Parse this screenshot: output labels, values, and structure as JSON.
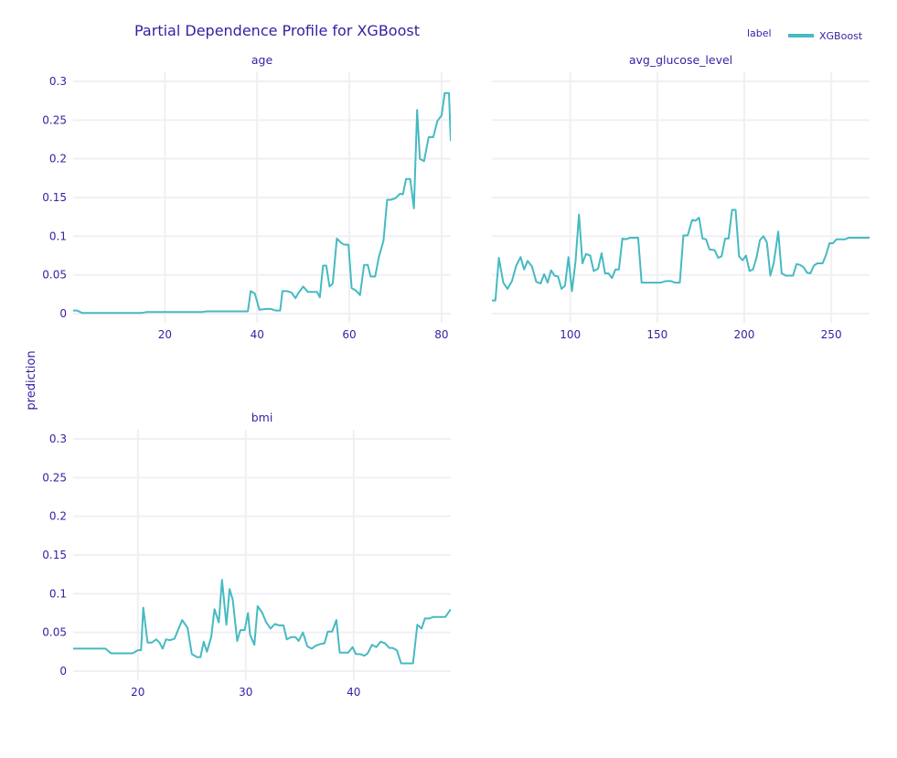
{
  "chart_data": {
    "type": "line",
    "title": "Partial Dependence Profile for XGBoost",
    "ylabel": "prediction",
    "legend": {
      "title": "label",
      "position": "top-right",
      "entries": [
        {
          "name": "XGBoost",
          "color": "#46bac2"
        }
      ]
    },
    "grid": true,
    "shared_y": {
      "ylim": [
        -0.012,
        0.312
      ],
      "ticks": [
        0,
        0.05,
        0.1,
        0.15,
        0.2,
        0.25,
        0.3
      ],
      "tick_labels": [
        "0",
        "0.05",
        "0.1",
        "0.15",
        "0.2",
        "0.25",
        "0.3"
      ]
    },
    "panels": [
      {
        "variable": "age",
        "xlim": [
          0.1,
          82
        ],
        "xticks": [
          20,
          40,
          60,
          80
        ],
        "series": [
          {
            "name": "XGBoost",
            "color": "#46bac2",
            "points": [
              [
                0.1,
                0.004
              ],
              [
                1,
                0.004
              ],
              [
                2,
                0.001
              ],
              [
                15,
                0.001
              ],
              [
                16,
                0.002
              ],
              [
                28,
                0.002
              ],
              [
                29,
                0.003
              ],
              [
                38,
                0.003
              ],
              [
                38.6,
                0.029
              ],
              [
                39.5,
                0.026
              ],
              [
                40.5,
                0.005
              ],
              [
                42,
                0.006
              ],
              [
                43,
                0.006
              ],
              [
                44,
                0.004
              ],
              [
                45,
                0.004
              ],
              [
                45.5,
                0.029
              ],
              [
                46.5,
                0.029
              ],
              [
                47.5,
                0.027
              ],
              [
                48.3,
                0.02
              ],
              [
                49,
                0.027
              ],
              [
                50,
                0.035
              ],
              [
                51,
                0.028
              ],
              [
                52,
                0.028
              ],
              [
                53,
                0.028
              ],
              [
                53.6,
                0.021
              ],
              [
                54.3,
                0.062
              ],
              [
                55,
                0.062
              ],
              [
                55.7,
                0.035
              ],
              [
                56.4,
                0.039
              ],
              [
                57.3,
                0.097
              ],
              [
                58.3,
                0.091
              ],
              [
                59,
                0.089
              ],
              [
                59.8,
                0.089
              ],
              [
                60.5,
                0.033
              ],
              [
                61.4,
                0.03
              ],
              [
                62.3,
                0.024
              ],
              [
                63.2,
                0.063
              ],
              [
                64,
                0.063
              ],
              [
                64.6,
                0.048
              ],
              [
                65.6,
                0.048
              ],
              [
                66.4,
                0.073
              ],
              [
                67.4,
                0.094
              ],
              [
                68.2,
                0.147
              ],
              [
                69,
                0.147
              ],
              [
                70,
                0.149
              ],
              [
                71,
                0.155
              ],
              [
                71.6,
                0.154
              ],
              [
                72.3,
                0.174
              ],
              [
                73.2,
                0.174
              ],
              [
                74,
                0.136
              ],
              [
                74.7,
                0.263
              ],
              [
                75.3,
                0.2
              ],
              [
                76.2,
                0.197
              ],
              [
                77.2,
                0.228
              ],
              [
                78.2,
                0.228
              ],
              [
                79.1,
                0.249
              ],
              [
                80,
                0.256
              ],
              [
                80.7,
                0.285
              ],
              [
                81.6,
                0.285
              ],
              [
                82,
                0.223
              ]
            ]
          }
        ]
      },
      {
        "variable": "avg_glucose_level",
        "xlim": [
          55,
          272
        ],
        "xticks": [
          100,
          150,
          200,
          250
        ],
        "series": [
          {
            "name": "XGBoost",
            "color": "#46bac2",
            "points": [
              [
                55,
                0.017
              ],
              [
                57,
                0.017
              ],
              [
                59,
                0.072
              ],
              [
                61.5,
                0.04
              ],
              [
                64,
                0.032
              ],
              [
                66.5,
                0.042
              ],
              [
                69,
                0.062
              ],
              [
                71.5,
                0.073
              ],
              [
                73.5,
                0.057
              ],
              [
                75.5,
                0.068
              ],
              [
                78,
                0.061
              ],
              [
                80.5,
                0.041
              ],
              [
                83,
                0.039
              ],
              [
                85,
                0.051
              ],
              [
                87,
                0.04
              ],
              [
                89,
                0.056
              ],
              [
                91,
                0.049
              ],
              [
                93,
                0.048
              ],
              [
                95,
                0.032
              ],
              [
                97,
                0.036
              ],
              [
                99,
                0.073
              ],
              [
                101,
                0.029
              ],
              [
                103,
                0.067
              ],
              [
                105,
                0.128
              ],
              [
                107,
                0.065
              ],
              [
                109,
                0.077
              ],
              [
                111.5,
                0.075
              ],
              [
                113.5,
                0.055
              ],
              [
                116,
                0.058
              ],
              [
                118,
                0.078
              ],
              [
                120,
                0.052
              ],
              [
                122,
                0.052
              ],
              [
                124,
                0.046
              ],
              [
                126,
                0.057
              ],
              [
                128,
                0.057
              ],
              [
                130,
                0.097
              ],
              [
                132,
                0.096
              ],
              [
                134.5,
                0.098
              ],
              [
                137,
                0.098
              ],
              [
                139,
                0.098
              ],
              [
                141,
                0.04
              ],
              [
                143,
                0.04
              ],
              [
                148,
                0.04
              ],
              [
                152,
                0.04
              ],
              [
                155,
                0.042
              ],
              [
                158,
                0.042
              ],
              [
                160,
                0.04
              ],
              [
                163,
                0.04
              ],
              [
                165,
                0.101
              ],
              [
                167.5,
                0.101
              ],
              [
                170,
                0.121
              ],
              [
                172,
                0.12
              ],
              [
                174,
                0.124
              ],
              [
                176,
                0.097
              ],
              [
                178,
                0.096
              ],
              [
                180,
                0.083
              ],
              [
                183,
                0.082
              ],
              [
                185,
                0.072
              ],
              [
                187,
                0.074
              ],
              [
                189,
                0.097
              ],
              [
                191,
                0.097
              ],
              [
                193,
                0.134
              ],
              [
                195,
                0.134
              ],
              [
                197,
                0.074
              ],
              [
                199,
                0.069
              ],
              [
                201,
                0.075
              ],
              [
                203,
                0.055
              ],
              [
                205,
                0.057
              ],
              [
                207,
                0.072
              ],
              [
                209,
                0.095
              ],
              [
                211,
                0.1
              ],
              [
                213,
                0.092
              ],
              [
                215,
                0.049
              ],
              [
                217,
                0.066
              ],
              [
                219.5,
                0.106
              ],
              [
                221.5,
                0.052
              ],
              [
                224,
                0.049
              ],
              [
                226,
                0.049
              ],
              [
                228,
                0.049
              ],
              [
                230,
                0.064
              ],
              [
                232,
                0.063
              ],
              [
                234,
                0.06
              ],
              [
                236,
                0.053
              ],
              [
                238,
                0.052
              ],
              [
                240,
                0.062
              ],
              [
                242,
                0.065
              ],
              [
                245,
                0.065
              ],
              [
                247,
                0.076
              ],
              [
                249,
                0.091
              ],
              [
                251,
                0.091
              ],
              [
                253,
                0.096
              ],
              [
                256,
                0.096
              ],
              [
                258,
                0.096
              ],
              [
                260,
                0.098
              ],
              [
                264,
                0.098
              ],
              [
                268,
                0.098
              ],
              [
                272,
                0.098
              ]
            ]
          }
        ]
      },
      {
        "variable": "bmi",
        "xlim": [
          14,
          49
        ],
        "xticks": [
          20,
          30,
          40
        ],
        "series": [
          {
            "name": "XGBoost",
            "color": "#46bac2",
            "points": [
              [
                14,
                0.029
              ],
              [
                17,
                0.029
              ],
              [
                17.5,
                0.023
              ],
              [
                19.5,
                0.023
              ],
              [
                20,
                0.027
              ],
              [
                20.3,
                0.027
              ],
              [
                20.5,
                0.082
              ],
              [
                20.9,
                0.037
              ],
              [
                21.3,
                0.037
              ],
              [
                21.7,
                0.041
              ],
              [
                22,
                0.037
              ],
              [
                22.3,
                0.029
              ],
              [
                22.6,
                0.041
              ],
              [
                23,
                0.04
              ],
              [
                23.4,
                0.042
              ],
              [
                24.1,
                0.066
              ],
              [
                24.6,
                0.056
              ],
              [
                25,
                0.022
              ],
              [
                25.5,
                0.018
              ],
              [
                25.8,
                0.018
              ],
              [
                26.1,
                0.038
              ],
              [
                26.4,
                0.025
              ],
              [
                26.8,
                0.044
              ],
              [
                27.1,
                0.08
              ],
              [
                27.5,
                0.063
              ],
              [
                27.8,
                0.118
              ],
              [
                28.2,
                0.06
              ],
              [
                28.5,
                0.106
              ],
              [
                28.8,
                0.092
              ],
              [
                29.2,
                0.039
              ],
              [
                29.5,
                0.053
              ],
              [
                29.9,
                0.053
              ],
              [
                30.2,
                0.075
              ],
              [
                30.4,
                0.047
              ],
              [
                30.8,
                0.034
              ],
              [
                31.1,
                0.084
              ],
              [
                31.5,
                0.076
              ],
              [
                31.9,
                0.063
              ],
              [
                32.3,
                0.055
              ],
              [
                32.7,
                0.061
              ],
              [
                33.1,
                0.059
              ],
              [
                33.5,
                0.059
              ],
              [
                33.8,
                0.041
              ],
              [
                34.2,
                0.044
              ],
              [
                34.6,
                0.044
              ],
              [
                34.9,
                0.039
              ],
              [
                35.3,
                0.05
              ],
              [
                35.7,
                0.032
              ],
              [
                36.1,
                0.029
              ],
              [
                36.5,
                0.033
              ],
              [
                36.9,
                0.035
              ],
              [
                37.3,
                0.036
              ],
              [
                37.6,
                0.051
              ],
              [
                38,
                0.051
              ],
              [
                38.4,
                0.066
              ],
              [
                38.7,
                0.024
              ],
              [
                39.1,
                0.024
              ],
              [
                39.5,
                0.024
              ],
              [
                39.9,
                0.031
              ],
              [
                40.2,
                0.022
              ],
              [
                40.6,
                0.022
              ],
              [
                41,
                0.02
              ],
              [
                41.3,
                0.023
              ],
              [
                41.7,
                0.034
              ],
              [
                42.1,
                0.031
              ],
              [
                42.5,
                0.038
              ],
              [
                42.9,
                0.036
              ],
              [
                43.3,
                0.03
              ],
              [
                43.6,
                0.03
              ],
              [
                44,
                0.027
              ],
              [
                44.4,
                0.01
              ],
              [
                45.1,
                0.01
              ],
              [
                45.5,
                0.01
              ],
              [
                45.9,
                0.06
              ],
              [
                46.3,
                0.055
              ],
              [
                46.6,
                0.068
              ],
              [
                47,
                0.068
              ],
              [
                47.4,
                0.07
              ],
              [
                48.1,
                0.07
              ],
              [
                48.5,
                0.07
              ],
              [
                49,
                0.08
              ]
            ]
          }
        ]
      }
    ]
  }
}
